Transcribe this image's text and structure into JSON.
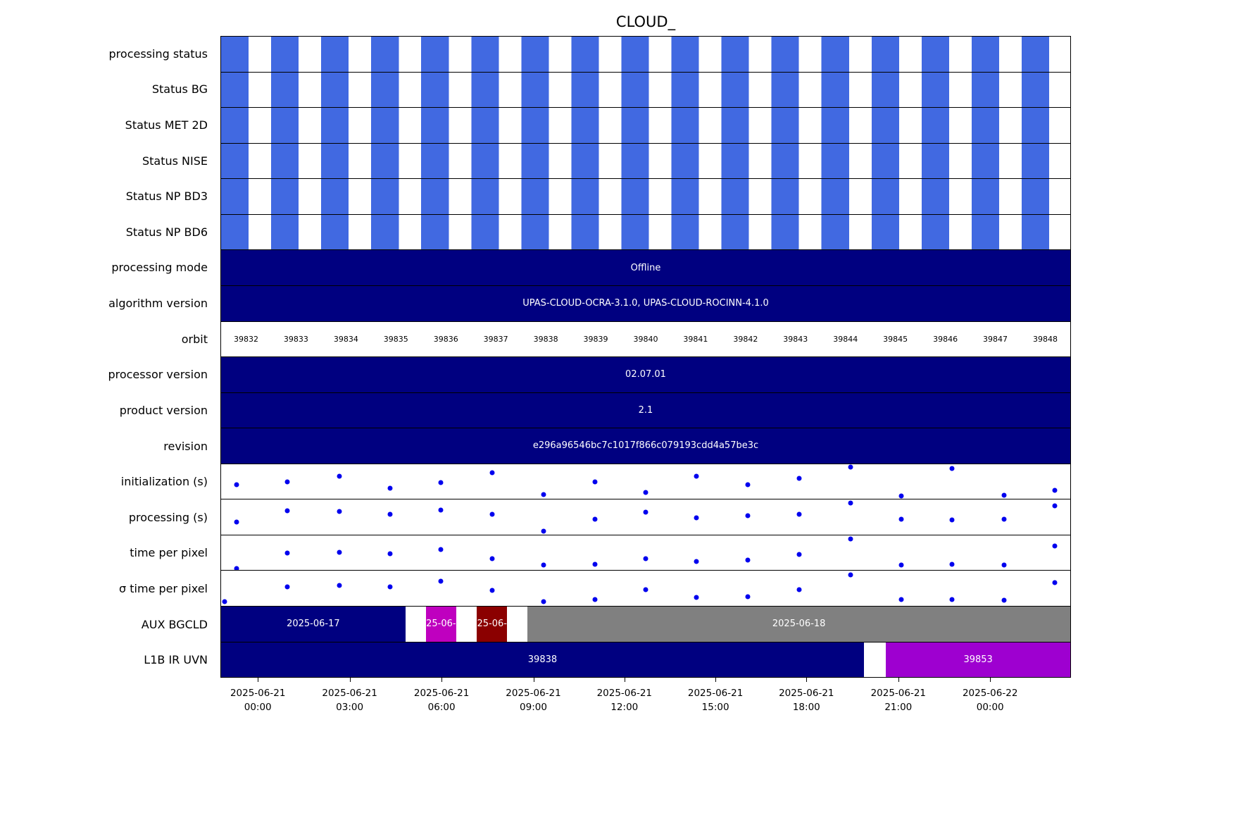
{
  "title": "CLOUD_",
  "colors": {
    "status_blue": "#4169e1",
    "navy": "#000080",
    "magenta": "#bf00bf",
    "dark_red": "#8b0000",
    "gray": "#808080",
    "purple": "#9e00d0",
    "dot": "#0000ee",
    "white": "#ffffff",
    "black": "#000000"
  },
  "chart_data": {
    "type": "timeline",
    "title": "CLOUD_",
    "orbit_count": 17,
    "orbit_duty_fraction": 0.55,
    "x_ticks": [
      {
        "date": "2025-06-21",
        "time": "00:00",
        "frac": 0.044
      },
      {
        "date": "2025-06-21",
        "time": "03:00",
        "frac": 0.152
      },
      {
        "date": "2025-06-21",
        "time": "06:00",
        "frac": 0.26
      },
      {
        "date": "2025-06-21",
        "time": "09:00",
        "frac": 0.368
      },
      {
        "date": "2025-06-21",
        "time": "12:00",
        "frac": 0.475
      },
      {
        "date": "2025-06-21",
        "time": "15:00",
        "frac": 0.582
      },
      {
        "date": "2025-06-21",
        "time": "18:00",
        "frac": 0.689
      },
      {
        "date": "2025-06-21",
        "time": "21:00",
        "frac": 0.797
      },
      {
        "date": "2025-06-22",
        "time": "00:00",
        "frac": 0.905
      }
    ],
    "rows": [
      {
        "label": "processing status",
        "type": "alternating"
      },
      {
        "label": "Status BG",
        "type": "alternating"
      },
      {
        "label": "Status MET 2D",
        "type": "alternating"
      },
      {
        "label": "Status NISE",
        "type": "alternating"
      },
      {
        "label": "Status NP BD3",
        "type": "alternating"
      },
      {
        "label": "Status NP BD6",
        "type": "alternating"
      },
      {
        "label": "processing mode",
        "type": "text_bar",
        "color": "navy",
        "text": "Offline"
      },
      {
        "label": "algorithm version",
        "type": "text_bar",
        "color": "navy",
        "text": "UPAS-CLOUD-OCRA-3.1.0, UPAS-CLOUD-ROCINN-4.1.0"
      },
      {
        "label": "orbit",
        "type": "orbits",
        "orbits": [
          39832,
          39833,
          39834,
          39835,
          39836,
          39837,
          39838,
          39839,
          39840,
          39841,
          39842,
          39843,
          39844,
          39845,
          39846,
          39847,
          39848
        ]
      },
      {
        "label": "processor version",
        "type": "text_bar",
        "color": "navy",
        "text": "02.07.01"
      },
      {
        "label": "product version",
        "type": "text_bar",
        "color": "navy",
        "text": "2.1"
      },
      {
        "label": "revision",
        "type": "text_bar",
        "color": "navy",
        "text": "e296a96546bc7c1017f866c079193cdd4a57be3c"
      },
      {
        "label": "initialization (s)",
        "type": "scatter",
        "points": [
          [
            0.018,
            0.59
          ],
          [
            0.078,
            0.51
          ],
          [
            0.139,
            0.35
          ],
          [
            0.199,
            0.69
          ],
          [
            0.259,
            0.53
          ],
          [
            0.38,
            0.88
          ],
          [
            0.319,
            0.24
          ],
          [
            0.44,
            0.51
          ],
          [
            0.5,
            0.82
          ],
          [
            0.56,
            0.35
          ],
          [
            0.62,
            0.59
          ],
          [
            0.681,
            0.41
          ],
          [
            0.741,
            0.08
          ],
          [
            0.801,
            0.92
          ],
          [
            0.861,
            0.12
          ],
          [
            0.922,
            0.9
          ],
          [
            0.982,
            0.76
          ]
        ]
      },
      {
        "label": "processing (s)",
        "type": "scatter",
        "points": [
          [
            0.018,
            0.63
          ],
          [
            0.078,
            0.32
          ],
          [
            0.139,
            0.33
          ],
          [
            0.199,
            0.42
          ],
          [
            0.259,
            0.3
          ],
          [
            0.319,
            0.42
          ],
          [
            0.38,
            0.9
          ],
          [
            0.44,
            0.55
          ],
          [
            0.5,
            0.36
          ],
          [
            0.56,
            0.52
          ],
          [
            0.62,
            0.46
          ],
          [
            0.681,
            0.42
          ],
          [
            0.741,
            0.1
          ],
          [
            0.801,
            0.56
          ],
          [
            0.861,
            0.58
          ],
          [
            0.922,
            0.56
          ],
          [
            0.982,
            0.18
          ]
        ]
      },
      {
        "label": "time per pixel",
        "type": "scatter",
        "points": [
          [
            0.018,
            0.95
          ],
          [
            0.078,
            0.5
          ],
          [
            0.139,
            0.48
          ],
          [
            0.199,
            0.52
          ],
          [
            0.259,
            0.4
          ],
          [
            0.319,
            0.66
          ],
          [
            0.38,
            0.86
          ],
          [
            0.44,
            0.82
          ],
          [
            0.5,
            0.66
          ],
          [
            0.56,
            0.74
          ],
          [
            0.62,
            0.7
          ],
          [
            0.681,
            0.54
          ],
          [
            0.741,
            0.1
          ],
          [
            0.801,
            0.84
          ],
          [
            0.861,
            0.82
          ],
          [
            0.922,
            0.86
          ],
          [
            0.982,
            0.3
          ]
        ]
      },
      {
        "label": "σ time per pixel",
        "type": "scatter",
        "points": [
          [
            0.004,
            0.88
          ],
          [
            0.078,
            0.45
          ],
          [
            0.139,
            0.41
          ],
          [
            0.199,
            0.45
          ],
          [
            0.259,
            0.3
          ],
          [
            0.319,
            0.55
          ],
          [
            0.38,
            0.88
          ],
          [
            0.44,
            0.82
          ],
          [
            0.5,
            0.53
          ],
          [
            0.56,
            0.75
          ],
          [
            0.62,
            0.73
          ],
          [
            0.681,
            0.53
          ],
          [
            0.741,
            0.12
          ],
          [
            0.801,
            0.82
          ],
          [
            0.861,
            0.82
          ],
          [
            0.922,
            0.84
          ],
          [
            0.982,
            0.33
          ]
        ]
      },
      {
        "label": "AUX BGCLD",
        "type": "segments",
        "segments": [
          {
            "start": 0.0,
            "end": 0.217,
            "color": "navy",
            "text": "2025-06-17"
          },
          {
            "start": 0.241,
            "end": 0.277,
            "color": "magenta",
            "text": "25-06-"
          },
          {
            "start": 0.301,
            "end": 0.337,
            "color": "dark_red",
            "text": "25-06-"
          },
          {
            "start": 0.361,
            "end": 1.0,
            "color": "gray",
            "text": "2025-06-18"
          }
        ]
      },
      {
        "label": "L1B IR UVN",
        "type": "segments",
        "segments": [
          {
            "start": 0.0,
            "end": 0.757,
            "color": "navy",
            "text": "39838"
          },
          {
            "start": 0.783,
            "end": 1.0,
            "color": "purple",
            "text": "39853"
          }
        ]
      }
    ]
  }
}
